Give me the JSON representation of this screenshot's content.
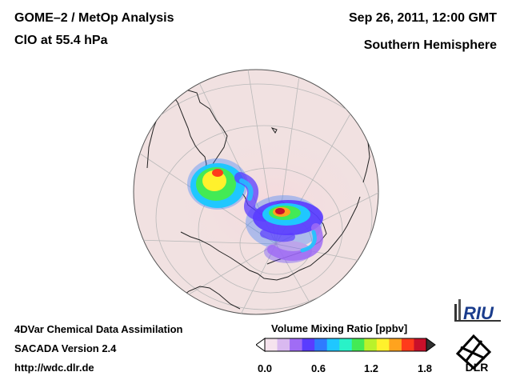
{
  "header": {
    "title": "GOME–2 / MetOp Analysis",
    "species": "ClO at 55.4 hPa",
    "datetime": "Sep 26, 2011, 12:00 GMT",
    "region": "Southern Hemisphere"
  },
  "footer": {
    "line1": "4DVar Chemical Data Assimilation",
    "line2": "SACADA Version 2.4",
    "line3": "http://wdc.dlr.de"
  },
  "colorbar": {
    "label": "Volume Mixing Ratio [ppbv]",
    "ticks": [
      "0.0",
      "0.6",
      "1.2",
      "1.8"
    ],
    "colors": [
      "#f6e3ee",
      "#d9b9f0",
      "#a06cf5",
      "#5a3cff",
      "#2f7bff",
      "#1fc7ff",
      "#29f2c8",
      "#43ea55",
      "#b9f22b",
      "#fff12c",
      "#ffa31e",
      "#ff3b1b",
      "#c8102a"
    ],
    "under_color": "#ffffff",
    "over_color": "#303030"
  },
  "logos": {
    "riu": "RIU",
    "dlr": "DLR"
  },
  "map": {
    "globe_fill": "#f1e1e1",
    "coast_color": "#222222",
    "grid_color": "#b9b9b9"
  }
}
